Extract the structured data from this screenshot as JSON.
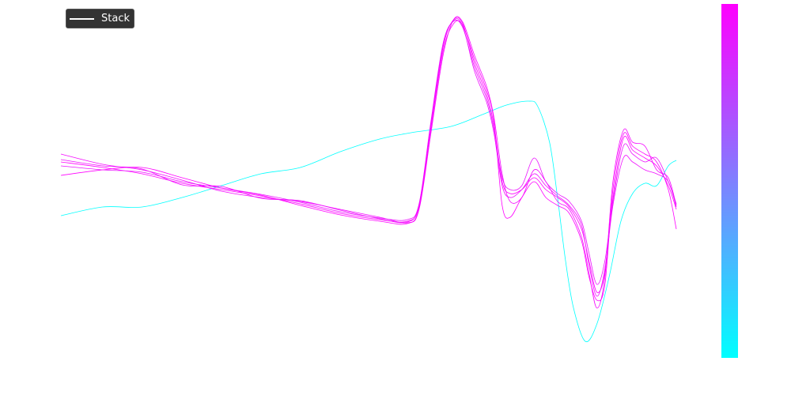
{
  "chart_data": {
    "type": "line",
    "title": "",
    "xlabel": "",
    "ylabel": "",
    "axes_visible": false,
    "grid": false,
    "xlim": [
      0,
      100
    ],
    "ylim": [
      -1.8,
      2.4
    ],
    "legend": {
      "placement": "top-left",
      "entries": [
        "Stack"
      ],
      "background": "#333333",
      "text_color": "#ffffff"
    },
    "colorbar": {
      "colormap": "cool",
      "top_color": "#ff00ff",
      "bottom_color": "#00ffff",
      "tick_labels": []
    },
    "series": [
      {
        "color": "#00ffff",
        "x": [
          0,
          6.8,
          13.2,
          19.7,
          26.1,
          32.5,
          38.9,
          45.4,
          51.8,
          56.9,
          63.4,
          68.5,
          72.4,
          76,
          77.5,
          79.4,
          80.7,
          82,
          83.3,
          85.2,
          87.1,
          89.1,
          91,
          92.9,
          94.9,
          96.8,
          98.7,
          100
        ],
        "y": [
          -0.13,
          -0.02,
          -0.02,
          0.1,
          0.25,
          0.4,
          0.48,
          0.68,
          0.84,
          0.92,
          1.0,
          1.15,
          1.27,
          1.32,
          1.25,
          0.8,
          0.1,
          -0.7,
          -1.3,
          -1.72,
          -1.5,
          -0.9,
          -0.2,
          0.15,
          0.28,
          0.25,
          0.5,
          0.57
        ]
      },
      {
        "color": "#ff00ff",
        "x": [
          0,
          6.8,
          13.2,
          19.7,
          26.1,
          32.5,
          38.9,
          45.4,
          51.8,
          56.3,
          58.2,
          60.1,
          62.1,
          63.8,
          65.3,
          67.2,
          69.2,
          70.4,
          71.7,
          73,
          74.9,
          76.9,
          78.8,
          80.7,
          82.6,
          84.6,
          85.8,
          87.1,
          88.4,
          89.7,
          91.4,
          92.9,
          94.9,
          96.8,
          98.7,
          100
        ],
        "y": [
          0.55,
          0.48,
          0.4,
          0.28,
          0.2,
          0.12,
          0.02,
          -0.1,
          -0.18,
          -0.2,
          0,
          1.0,
          2.0,
          2.35,
          2.3,
          1.8,
          1.4,
          1.0,
          0.3,
          0.15,
          0.2,
          0.35,
          0.2,
          0.1,
          -0.02,
          -0.3,
          -0.7,
          -1.1,
          -0.85,
          0.1,
          0.85,
          0.7,
          0.6,
          0.5,
          0.25,
          -0.05
        ]
      },
      {
        "color": "#f50aff",
        "x": [
          0,
          6.8,
          13.2,
          19.7,
          26.1,
          32.5,
          38.9,
          45.4,
          51.8,
          56.3,
          58.2,
          60.1,
          62.1,
          63.8,
          65.3,
          67.2,
          69.2,
          70.4,
          71.7,
          73,
          74.9,
          76.9,
          78.8,
          80.7,
          82.6,
          84.6,
          85.8,
          87.1,
          88.4,
          89.7,
          91.4,
          92.9,
          94.9,
          96.8,
          98.7,
          100
        ],
        "y": [
          0.65,
          0.52,
          0.45,
          0.32,
          0.18,
          0.1,
          0.05,
          -0.05,
          -0.15,
          -0.22,
          -0.05,
          0.9,
          1.9,
          2.35,
          2.32,
          1.9,
          1.5,
          1.1,
          0.4,
          0.05,
          0.1,
          0.45,
          0.3,
          0.05,
          -0.05,
          -0.4,
          -0.85,
          -1.3,
          -0.9,
          0.3,
          0.95,
          0.8,
          0.75,
          0.45,
          0.35,
          0.0
        ]
      },
      {
        "color": "#eb14ff",
        "x": [
          0,
          6.8,
          13.2,
          19.7,
          26.1,
          32.5,
          38.9,
          45.4,
          51.8,
          56.3,
          58.2,
          60.1,
          62.1,
          63.8,
          65.3,
          67.2,
          69.2,
          70.4,
          71.7,
          73,
          74.9,
          76.9,
          78.8,
          80.7,
          82.6,
          84.6,
          85.8,
          87.1,
          88.4,
          89.7,
          91.4,
          92.9,
          94.9,
          96.8,
          98.7,
          100
        ],
        "y": [
          0.5,
          0.45,
          0.42,
          0.3,
          0.22,
          0.14,
          0.04,
          -0.08,
          -0.16,
          -0.18,
          0.02,
          1.05,
          2.05,
          2.33,
          2.25,
          1.75,
          1.35,
          0.95,
          0.35,
          0.2,
          0.25,
          0.6,
          0.3,
          0.15,
          0.05,
          -0.2,
          -0.6,
          -1.0,
          -0.7,
          0.05,
          0.75,
          0.65,
          0.55,
          0.6,
          0.3,
          0.02
        ]
      },
      {
        "color": "#ff00ff",
        "x": [
          0,
          6.8,
          13.2,
          19.7,
          26.1,
          32.5,
          38.9,
          45.4,
          51.8,
          56.3,
          58.2,
          60.1,
          62.1,
          63.8,
          65.3,
          67.2,
          69.2,
          70.4,
          71.7,
          73,
          74.9,
          76.9,
          78.8,
          80.7,
          82.6,
          84.6,
          85.8,
          87.1,
          88.4,
          89.7,
          91.4,
          92.9,
          94.9,
          96.8,
          98.7,
          100
        ],
        "y": [
          0.38,
          0.45,
          0.48,
          0.35,
          0.22,
          0.13,
          0.0,
          -0.12,
          -0.2,
          -0.23,
          -0.03,
          0.95,
          1.95,
          2.3,
          2.28,
          1.85,
          1.45,
          1.05,
          0.0,
          -0.15,
          0.1,
          0.3,
          0.1,
          0.0,
          -0.1,
          -0.45,
          -0.9,
          -1.2,
          -1.0,
          0.2,
          0.9,
          0.75,
          0.65,
          0.55,
          0.2,
          -0.3
        ]
      },
      {
        "color": "#f00fff",
        "x": [
          0,
          6.8,
          13.2,
          19.7,
          26.1,
          32.5,
          38.9,
          45.4,
          51.8,
          56.3,
          58.2,
          60.1,
          62.1,
          63.8,
          65.3,
          67.2,
          69.2,
          70.4,
          71.7,
          73,
          74.9,
          76.9,
          78.8,
          80.7,
          82.6,
          84.6,
          85.8,
          87.1,
          88.4,
          89.7,
          91.4,
          92.9,
          94.9,
          96.8,
          98.7,
          100
        ],
        "y": [
          0.58,
          0.5,
          0.46,
          0.26,
          0.24,
          0.09,
          0.06,
          -0.06,
          -0.17,
          -0.21,
          0.01,
          1.02,
          2.02,
          2.34,
          2.27,
          1.7,
          1.3,
          0.9,
          0.25,
          0.1,
          0.2,
          0.4,
          0.25,
          0.12,
          0.0,
          -0.25,
          -0.75,
          -1.15,
          -0.8,
          0.0,
          0.6,
          0.55,
          0.45,
          0.4,
          0.3,
          -0.02
        ]
      }
    ]
  }
}
